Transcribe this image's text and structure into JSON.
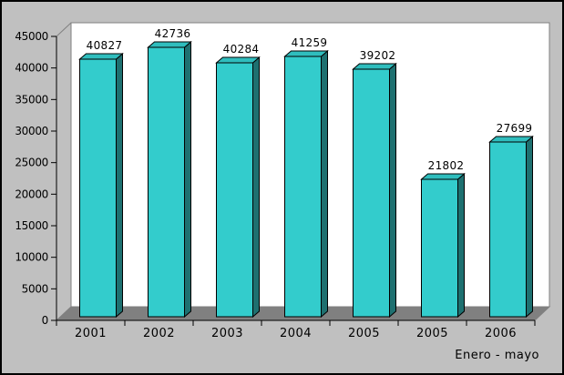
{
  "colors": {
    "background": "#C0C0C0",
    "wall_fill": "#FFFFFF",
    "wall_border": "#808080",
    "floor_fill": "#808080",
    "axis": "#000000",
    "bar_front": "#33CCCC",
    "bar_top": "#2FBDBD",
    "bar_side": "#1E7070",
    "bar_outline": "#000000",
    "text": "#000000"
  },
  "chart_data": {
    "type": "bar",
    "style": "3d-column",
    "title": "",
    "xlabel": "",
    "ylabel": "",
    "categories": [
      "2001",
      "2002",
      "2003",
      "2004",
      "2005",
      "2005",
      "2006"
    ],
    "values": [
      40827,
      42736,
      40284,
      41259,
      39202,
      21802,
      27699
    ],
    "value_labels": [
      "40827",
      "42736",
      "40284",
      "41259",
      "39202",
      "21802",
      "27699"
    ],
    "ylim": [
      0,
      45000
    ],
    "ytick_step": 5000,
    "ytick_labels": [
      "0",
      "5000",
      "10000",
      "15000",
      "20000",
      "25000",
      "30000",
      "35000",
      "40000",
      "45000"
    ],
    "grid": false,
    "legend": null,
    "annotations": [
      "Enero - mayo"
    ]
  }
}
